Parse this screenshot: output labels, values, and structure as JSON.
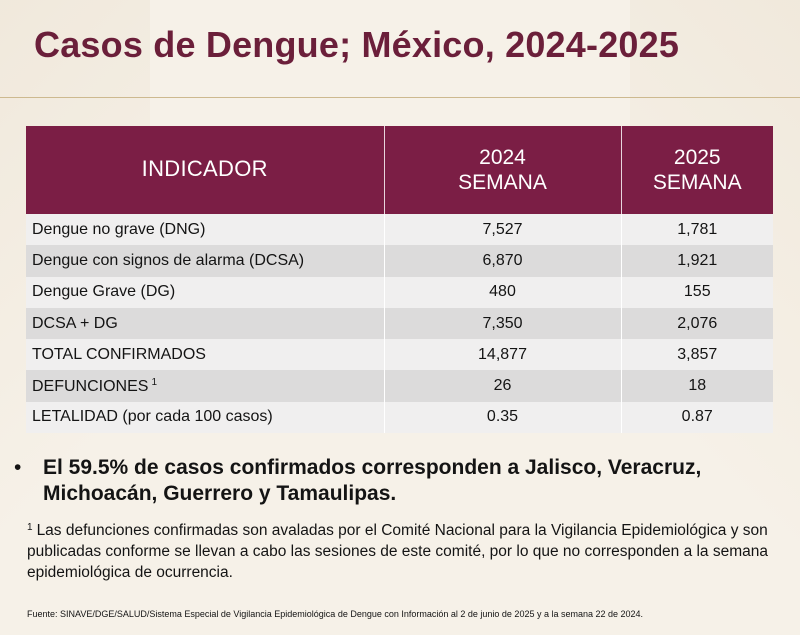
{
  "title": "Casos de Dengue; México, 2024-2025",
  "table": {
    "headers": {
      "indicator": "INDICADOR",
      "col2024_year": "2024",
      "col2024_sub": "SEMANA",
      "col2025_year": "2025",
      "col2025_sub": "SEMANA"
    },
    "rows": [
      {
        "label_main": "Dengue no grave",
        "label_abbr": " (DNG)",
        "sup": "",
        "v2024": "7,527",
        "v2025": "1,781"
      },
      {
        "label_main": "Dengue con signos de alarma",
        "label_abbr": " (DCSA)",
        "sup": "",
        "v2024": "6,870",
        "v2025": "1,921"
      },
      {
        "label_main": "Dengue Grave",
        "label_abbr": " (DG)",
        "sup": "",
        "v2024": "480",
        "v2025": "155"
      },
      {
        "label_main": "DCSA + DG",
        "label_abbr": "",
        "sup": "",
        "v2024": "7,350",
        "v2025": "2,076"
      },
      {
        "label_main": "TOTAL CONFIRMADOS",
        "label_abbr": "",
        "sup": "",
        "v2024": "14,877",
        "v2025": "3,857"
      },
      {
        "label_main": "DEFUNCIONES",
        "label_abbr": "",
        "sup": "1",
        "v2024": "26",
        "v2025": "18"
      },
      {
        "label_main": "LETALIDAD (por cada 100 casos)",
        "label_abbr": "",
        "sup": "",
        "v2024": "0.35",
        "v2025": "0.87"
      }
    ]
  },
  "bullet": {
    "marker": "•",
    "text": "El 59.5% de casos confirmados corresponden a Jalisco, Veracruz, Michoacán, Guerrero y Tamaulipas."
  },
  "footnote": {
    "marker": "1",
    "text": "Las defunciones confirmadas son avaladas por el Comité Nacional para la Vigilancia Epidemiológica y son publicadas conforme se llevan a cabo las sesiones de este comité, por lo que no corresponden a la semana epidemiológica de ocurrencia."
  },
  "source": "Fuente: SINAVE/DGE/SALUD/Sistema Especial de Vigilancia Epidemiológica de Dengue con Información al 2 de junio de 2025 y a la semana 22 de 2024.",
  "colors": {
    "accent": "#7b1e45",
    "title": "#6b1f3a",
    "background": "#f6f1e8",
    "row_light": "#f0efef",
    "row_dark": "#dcdbdb"
  }
}
